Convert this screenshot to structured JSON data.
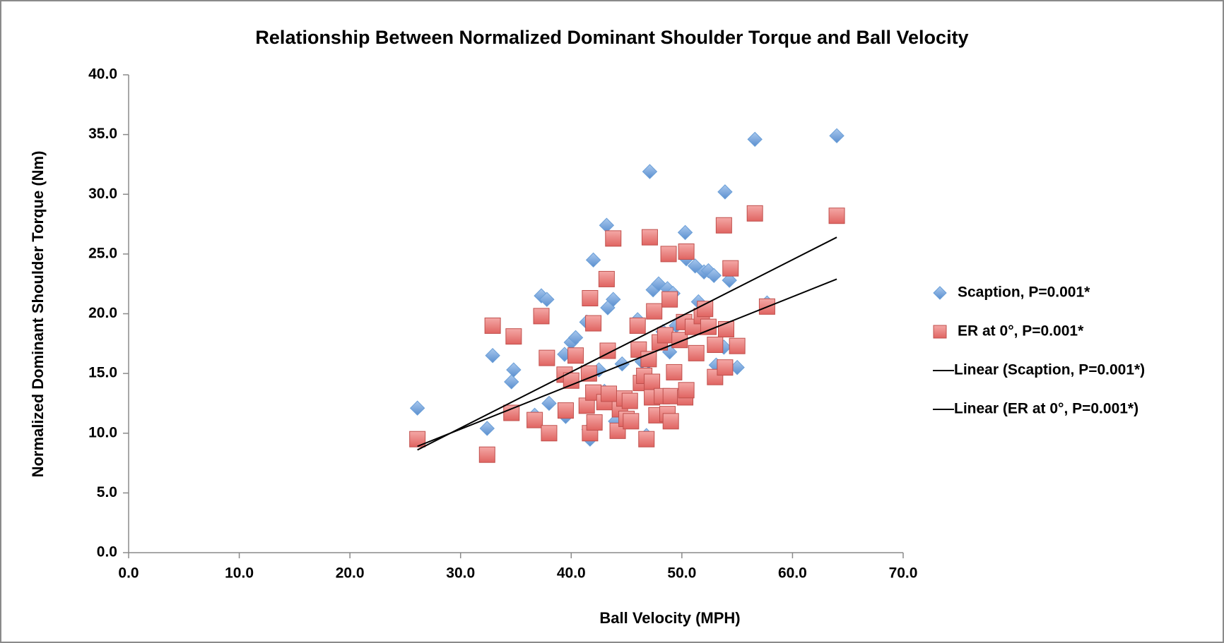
{
  "chart_data": {
    "type": "scatter",
    "title": "Relationship Between Normalized Dominant Shoulder Torque and Ball Velocity",
    "xlabel": "Ball Velocity (MPH)",
    "ylabel": "Normalized Dominant Shoulder Torque (Nm)",
    "xlim": [
      0,
      70
    ],
    "ylim": [
      0,
      40
    ],
    "xticks": [
      {
        "value": 0,
        "label": "0.0"
      },
      {
        "value": 10,
        "label": "10.0"
      },
      {
        "value": 20,
        "label": "20.0"
      },
      {
        "value": 30,
        "label": "30.0"
      },
      {
        "value": 40,
        "label": "40.0"
      },
      {
        "value": 50,
        "label": "50.0"
      },
      {
        "value": 60,
        "label": "60.0"
      },
      {
        "value": 70,
        "label": "70.0"
      }
    ],
    "yticks": [
      {
        "value": 0,
        "label": "0.0"
      },
      {
        "value": 5,
        "label": "5.0"
      },
      {
        "value": 10,
        "label": "10.0"
      },
      {
        "value": 15,
        "label": "15.0"
      },
      {
        "value": 20,
        "label": "20.0"
      },
      {
        "value": 25,
        "label": "25.0"
      },
      {
        "value": 30,
        "label": "30.0"
      },
      {
        "value": 35,
        "label": "35.0"
      },
      {
        "value": 40,
        "label": "40.0"
      }
    ],
    "grid": false,
    "legend": "right",
    "series": [
      {
        "name": "Scaption, P=0.001*",
        "type": "scatter",
        "marker": "diamond",
        "color": "#6a9fd8",
        "x": [
          26.1,
          32.4,
          32.9,
          34.6,
          34.8,
          36.7,
          37.3,
          37.8,
          38.0,
          39.4,
          39.5,
          40.0,
          40.4,
          41.4,
          41.6,
          41.7,
          42.0,
          42.5,
          43.0,
          43.2,
          43.3,
          43.8,
          44.0,
          44.6,
          46.0,
          46.4,
          46.8,
          47.0,
          47.1,
          47.4,
          47.9,
          48.3,
          48.7,
          48.9,
          49.2,
          49.5,
          50.3,
          50.4,
          51.2,
          51.5,
          52.0,
          52.4,
          52.9,
          53.1,
          53.8,
          53.9,
          54.3,
          55.0,
          56.6,
          57.7,
          64.0
        ],
        "values": [
          12.1,
          10.4,
          16.5,
          14.3,
          15.3,
          11.5,
          21.5,
          21.2,
          12.5,
          16.6,
          11.4,
          17.6,
          18.0,
          19.3,
          10.3,
          9.5,
          24.5,
          15.3,
          13.5,
          27.4,
          20.5,
          21.2,
          11.0,
          15.8,
          19.5,
          16.0,
          9.8,
          16.0,
          31.9,
          22.0,
          22.5,
          18.5,
          22.1,
          16.8,
          21.7,
          19.0,
          26.8,
          24.6,
          24.0,
          21.0,
          23.5,
          23.6,
          23.2,
          15.7,
          17.2,
          30.2,
          22.8,
          15.5,
          34.6,
          20.9,
          34.9
        ]
      },
      {
        "name": "ER at 0°, P=0.001*",
        "type": "scatter",
        "marker": "square",
        "color": "#e8716f",
        "x": [
          26.1,
          32.4,
          32.9,
          34.6,
          34.8,
          36.7,
          37.3,
          37.8,
          38.0,
          39.4,
          39.5,
          40.0,
          40.4,
          41.4,
          41.6,
          41.7,
          41.7,
          42.0,
          42.0,
          42.1,
          43.0,
          43.2,
          43.3,
          43.4,
          43.8,
          44.2,
          44.4,
          44.8,
          45.0,
          45.3,
          45.4,
          46.0,
          46.1,
          46.3,
          46.6,
          46.8,
          47.0,
          47.1,
          47.3,
          47.3,
          47.5,
          47.7,
          48.0,
          48.2,
          48.5,
          48.7,
          48.8,
          48.9,
          49.0,
          49.0,
          49.3,
          49.8,
          50.2,
          50.3,
          50.4,
          50.4,
          51.0,
          51.3,
          51.8,
          52.1,
          52.4,
          53.0,
          53.0,
          53.8,
          53.9,
          54.0,
          54.4,
          55.0,
          56.6,
          57.7,
          64.0
        ],
        "values": [
          9.5,
          8.2,
          19.0,
          11.7,
          18.1,
          11.1,
          19.8,
          16.3,
          10.0,
          14.9,
          11.9,
          14.4,
          16.5,
          12.3,
          15.0,
          21.3,
          10.0,
          19.2,
          13.4,
          10.9,
          12.6,
          22.9,
          16.9,
          13.3,
          26.3,
          10.2,
          12.0,
          12.9,
          11.2,
          12.7,
          11.0,
          19.0,
          17.0,
          14.2,
          14.8,
          9.5,
          16.2,
          26.4,
          13.0,
          14.3,
          20.2,
          11.5,
          17.6,
          13.1,
          18.2,
          11.6,
          25.0,
          21.2,
          13.1,
          11.0,
          15.1,
          17.8,
          19.3,
          13.0,
          25.2,
          13.6,
          18.9,
          16.7,
          19.8,
          20.4,
          18.9,
          14.7,
          17.4,
          27.4,
          15.5,
          18.7,
          23.8,
          17.3,
          28.4,
          20.6,
          28.2
        ]
      },
      {
        "name": "Linear (Scaption, P=0.001*)",
        "type": "line",
        "color": "#000000",
        "x": [
          26.1,
          64.0
        ],
        "values": [
          8.6,
          26.4
        ]
      },
      {
        "name": "Linear (ER at 0°, P=0.001*)",
        "type": "line",
        "color": "#000000",
        "x": [
          26.1,
          64.0
        ],
        "values": [
          8.9,
          22.9
        ]
      }
    ]
  }
}
